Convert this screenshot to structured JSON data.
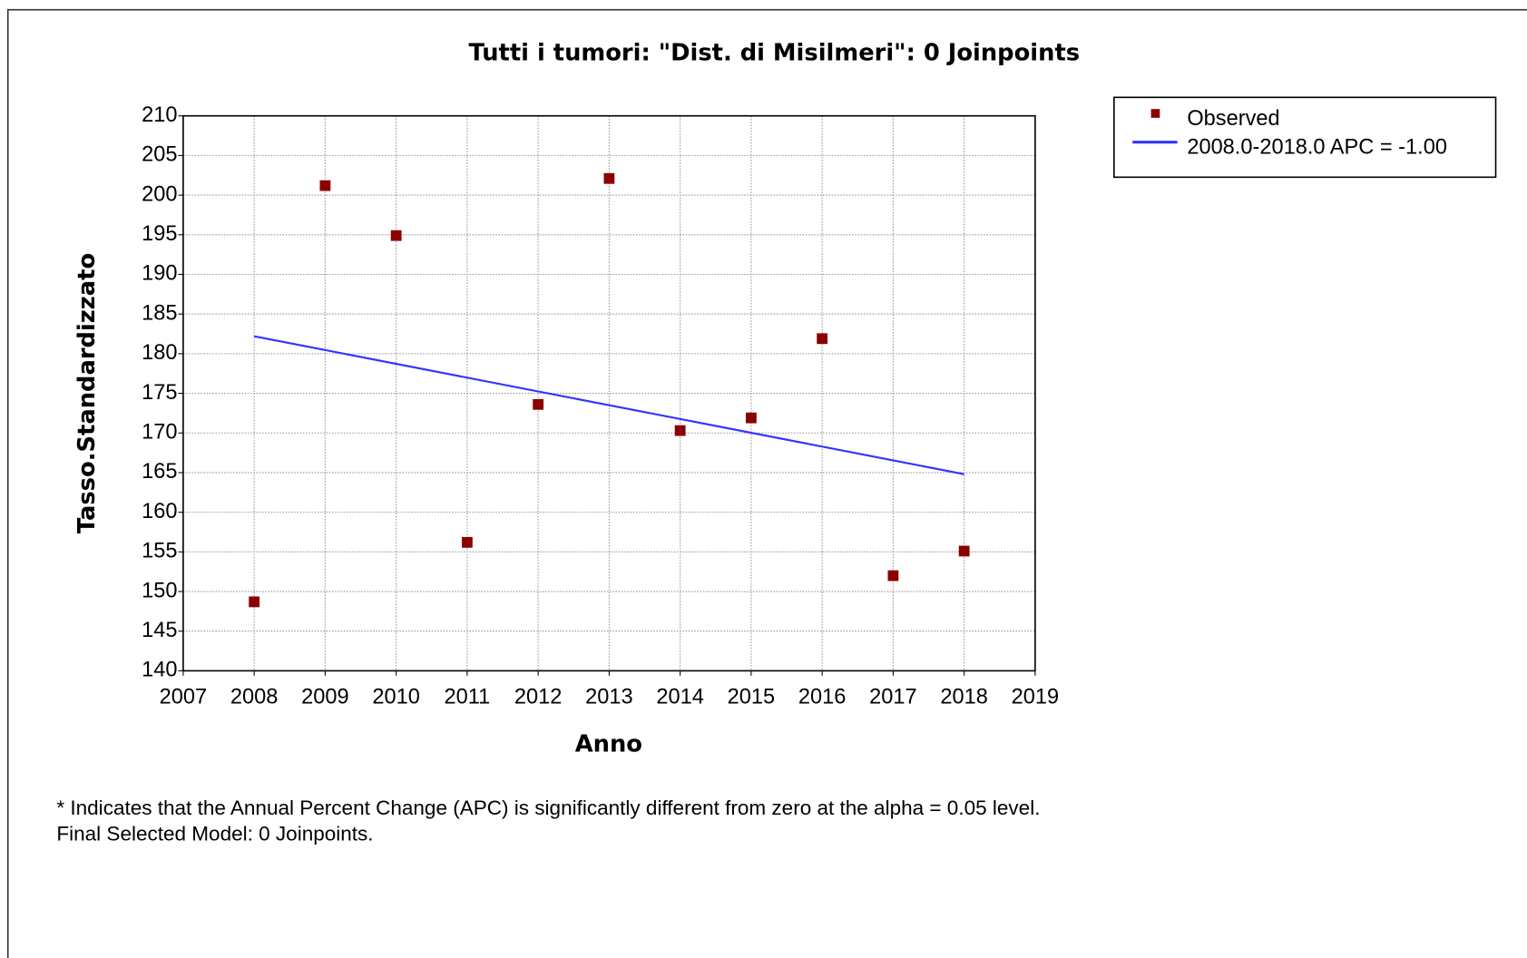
{
  "chart_data": {
    "type": "scatter",
    "title": "Tutti i tumori: \"Dist. di Misilmeri\": 0 Joinpoints",
    "x_label": "Anno",
    "y_label": "Tasso.Standardizzato",
    "x": [
      2008,
      2009,
      2010,
      2011,
      2012,
      2013,
      2014,
      2015,
      2016,
      2017,
      2018
    ],
    "series": [
      {
        "name": "Observed",
        "type": "scatter",
        "color": "#8b0000",
        "values": [
          148.7,
          201.2,
          194.9,
          156.2,
          173.6,
          202.1,
          170.3,
          171.9,
          181.9,
          152.0,
          155.1
        ]
      },
      {
        "name": "2008.0-2018.0 APC  = -1.00",
        "type": "line",
        "color": "#3333ff",
        "x": [
          2008,
          2018
        ],
        "values": [
          182.2,
          164.8
        ]
      }
    ],
    "xlim": [
      2007,
      2019
    ],
    "xticks": [
      2007,
      2008,
      2009,
      2010,
      2011,
      2012,
      2013,
      2014,
      2015,
      2016,
      2017,
      2018,
      2019
    ],
    "ylim": [
      140,
      210
    ],
    "yticks": [
      140,
      145,
      150,
      155,
      160,
      165,
      170,
      175,
      180,
      185,
      190,
      195,
      200,
      205,
      210
    ],
    "grid": true,
    "legend": "upper right",
    "notes": [
      "* Indicates that the Annual Percent Change (APC) is significantly different from zero at the alpha = 0.05 level.",
      "Final Selected Model: 0 Joinpoints."
    ]
  }
}
